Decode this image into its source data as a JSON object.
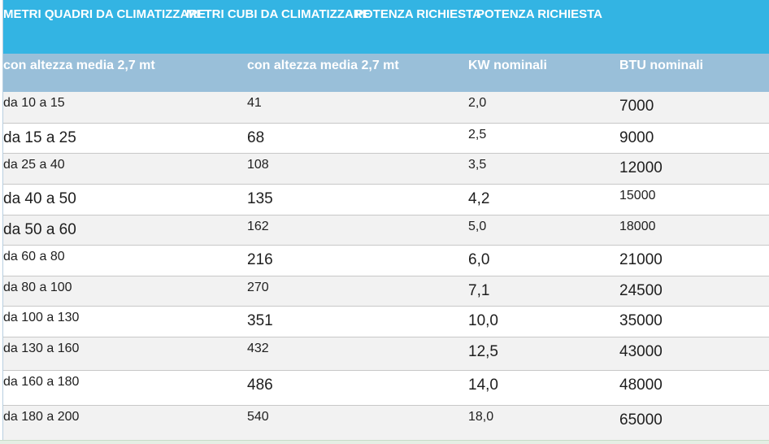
{
  "header": {
    "columns": [
      "METRI QUADRI DA CLIMATIZZARE",
      "METRI CUBI DA CLIMATIZZARE",
      "POTENZA RICHIESTA",
      "POTENZA RICHIESTA"
    ]
  },
  "subheader": {
    "columns": [
      "con altezza media 2,7 mt",
      "con altezza media 2,7 mt",
      "KW nominali",
      "BTU nominali"
    ]
  },
  "rows": [
    [
      "da 10 a 15",
      "41",
      "2,0",
      "7000"
    ],
    [
      "da 15 a 25",
      "68",
      "2,5",
      "9000"
    ],
    [
      "da 25 a 40",
      "108",
      "3,5",
      "12000"
    ],
    [
      "da 40 a 50",
      "135",
      "4,2",
      "15000"
    ],
    [
      "da 50 a 60",
      "162",
      "5,0",
      "18000"
    ],
    [
      "da 60 a 80",
      "216",
      "6,0",
      "21000"
    ],
    [
      "da 80 a 100",
      "270",
      "7,1",
      "24500"
    ],
    [
      "da 100 a 130",
      "351",
      "10,0",
      "35000"
    ],
    [
      "da 130 a 160",
      "432",
      "12,5",
      "43000"
    ],
    [
      "da 160 a 180",
      "486",
      "14,0",
      "48000"
    ],
    [
      "da 180 a 200",
      "540",
      "18,0",
      "65000"
    ]
  ],
  "colors": {
    "header_bg": "#33b4e3",
    "subheader_bg": "#99bfd9",
    "stripe_bg": "#f2f2f2"
  }
}
